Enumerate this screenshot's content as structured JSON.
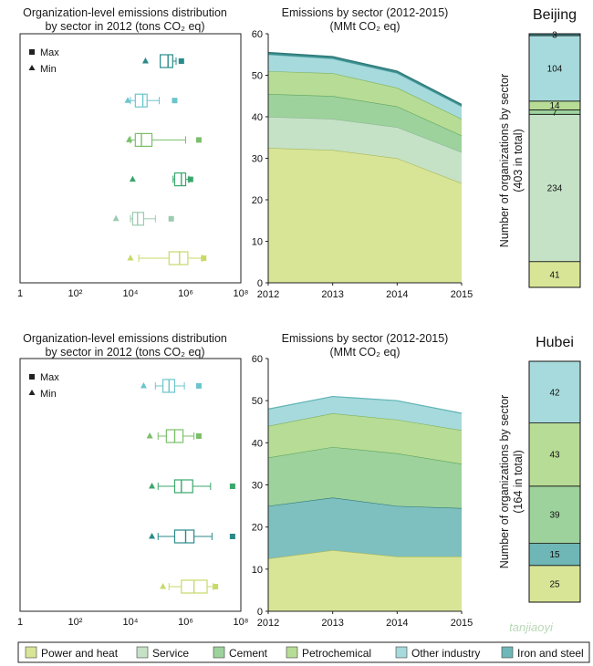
{
  "legend": [
    {
      "name": "Power and heat",
      "color": "#d8e597"
    },
    {
      "name": "Service",
      "color": "#c5e2c6"
    },
    {
      "name": "Cement",
      "color": "#9dd29c"
    },
    {
      "name": "Petrochemical",
      "color": "#b7dc95"
    },
    {
      "name": "Other industry",
      "color": "#a7dadc"
    },
    {
      "name": "Iron and steel",
      "color": "#6fb7b7"
    }
  ],
  "markers": {
    "max": "Max",
    "min": "Min"
  },
  "watermark": "tanjiaoyi",
  "chart_data": [
    {
      "type": "box",
      "title": [
        "Organization-level emissions distribution",
        "by sector in 2012 (tons CO₂ eq)"
      ],
      "xscale": "log",
      "xlim": [
        1,
        100000000
      ],
      "xticks": [
        "1",
        "10²",
        "10⁴",
        "10⁶",
        "10⁸"
      ],
      "boxes": [
        {
          "sector": "Iron and steel",
          "color": "#2a8a8a",
          "min": 35000,
          "q1": 120000,
          "median": 230000,
          "q3": 340000,
          "whisker_low": 120000,
          "whisker_high": 450000,
          "max": 700000
        },
        {
          "sector": "Other industry",
          "color": "#6cc5cc",
          "min": 8000,
          "q1": 15000,
          "median": 28000,
          "q3": 40000,
          "whisker_low": 10000,
          "whisker_high": 110000,
          "max": 400000
        },
        {
          "sector": "Petrochemical",
          "color": "#7bbf6a",
          "min": 9000,
          "q1": 15000,
          "median": 25000,
          "q3": 60000,
          "whisker_low": 10000,
          "whisker_high": 1000000,
          "max": 3000000
        },
        {
          "sector": "Cement",
          "color": "#3aa76d",
          "min": 12000,
          "q1": 400000,
          "median": 700000,
          "q3": 1000000,
          "whisker_low": 350000,
          "whisker_high": 1300000,
          "max": 1500000
        },
        {
          "sector": "Service",
          "color": "#9ccbb0",
          "min": 3000,
          "q1": 12000,
          "median": 18000,
          "q3": 30000,
          "whisker_low": 10000,
          "whisker_high": 80000,
          "max": 300000
        },
        {
          "sector": "Power and heat",
          "color": "#c9d96a",
          "min": 10000,
          "q1": 250000,
          "median": 600000,
          "q3": 1200000,
          "whisker_low": 20000,
          "whisker_high": 4000000,
          "max": 4500000
        }
      ]
    },
    {
      "type": "area",
      "title": [
        "Emissions by sector (2012-2015)",
        "(MMt CO₂ eq)"
      ],
      "x": [
        2012,
        2013,
        2014,
        2015
      ],
      "ylim": [
        0,
        60
      ],
      "yticks": [
        0,
        10,
        20,
        30,
        40,
        50,
        60
      ],
      "series": [
        {
          "name": "Power and heat",
          "color": "#d8e597",
          "line": "#aab85a",
          "values": [
            32.5,
            32.0,
            30.0,
            24.0
          ]
        },
        {
          "name": "Service",
          "color": "#c5e2c6",
          "line": "#8fb797",
          "values": [
            7.5,
            7.5,
            7.5,
            7.5
          ]
        },
        {
          "name": "Cement",
          "color": "#9dd29c",
          "line": "#5fa562",
          "values": [
            5.5,
            5.5,
            5.0,
            4.0
          ]
        },
        {
          "name": "Petrochemical",
          "color": "#b7dc95",
          "line": "#7eb15f",
          "values": [
            5.5,
            5.5,
            4.5,
            4.0
          ]
        },
        {
          "name": "Other industry",
          "color": "#a7dadc",
          "line": "#5fb3b5",
          "values": [
            4.0,
            3.5,
            3.5,
            3.0
          ]
        },
        {
          "name": "Iron and steel",
          "color": "#3e8e8e",
          "line": "#2c7777",
          "values": [
            0.5,
            0.5,
            0.5,
            0.5
          ]
        }
      ]
    },
    {
      "type": "stacked-bar",
      "title": "Beijing",
      "ylabel": [
        "Number of organizations by sector",
        "(403 in total)"
      ],
      "segments": [
        {
          "sector": "Power and heat",
          "color": "#d8e597",
          "value": 41
        },
        {
          "sector": "Service",
          "color": "#c5e2c6",
          "value": 234
        },
        {
          "sector": "Cement",
          "color": "#9dd29c",
          "value": 7
        },
        {
          "sector": "Petrochemical",
          "color": "#b7dc95",
          "value": 14
        },
        {
          "sector": "Other industry",
          "color": "#a7dadc",
          "value": 104
        },
        {
          "sector": "Iron and steel",
          "color": "#3e8e8e",
          "value": 3
        }
      ]
    },
    {
      "type": "box",
      "title": [
        "Organization-level emissions distribution",
        "by sector in 2012 (tons CO₂ eq)"
      ],
      "xscale": "log",
      "xlim": [
        1,
        100000000
      ],
      "xticks": [
        "1",
        "10²",
        "10⁴",
        "10⁶",
        "10⁸"
      ],
      "boxes": [
        {
          "sector": "Other industry",
          "color": "#6cc5cc",
          "min": 30000,
          "q1": 150000,
          "median": 250000,
          "q3": 400000,
          "whisker_low": 80000,
          "whisker_high": 900000,
          "max": 3000000
        },
        {
          "sector": "Petrochemical",
          "color": "#7bbf6a",
          "min": 50000,
          "q1": 200000,
          "median": 400000,
          "q3": 800000,
          "whisker_low": 100000,
          "whisker_high": 2000000,
          "max": 3000000
        },
        {
          "sector": "Cement",
          "color": "#3aa76d",
          "min": 60000,
          "q1": 400000,
          "median": 700000,
          "q3": 1800000,
          "whisker_low": 100000,
          "whisker_high": 8000000,
          "max": 50000000
        },
        {
          "sector": "Iron and steel",
          "color": "#2a8a8a",
          "min": 60000,
          "q1": 400000,
          "median": 1000000,
          "q3": 2000000,
          "whisker_low": 100000,
          "whisker_high": 9000000,
          "max": 50000000
        },
        {
          "sector": "Power and heat",
          "color": "#c9d96a",
          "min": 150000,
          "q1": 700000,
          "median": 2000000,
          "q3": 6000000,
          "whisker_low": 250000,
          "whisker_high": 10000000,
          "max": 12000000
        }
      ]
    },
    {
      "type": "area",
      "title": [
        "Emissions by sector (2012-2015)",
        "(MMt CO₂ eq)"
      ],
      "x": [
        2012,
        2013,
        2014,
        2015
      ],
      "ylim": [
        0,
        60
      ],
      "yticks": [
        0,
        10,
        20,
        30,
        40,
        50,
        60
      ],
      "series": [
        {
          "name": "Power and heat",
          "color": "#d8e597",
          "line": "#aab85a",
          "values": [
            12.5,
            14.5,
            13.0,
            13.0
          ]
        },
        {
          "name": "Iron and steel",
          "color": "#7ebfbf",
          "line": "#2c7777",
          "values": [
            12.5,
            12.5,
            12.0,
            11.5
          ]
        },
        {
          "name": "Cement",
          "color": "#9dd29c",
          "line": "#5fa562",
          "values": [
            11.5,
            12.0,
            12.5,
            10.5
          ]
        },
        {
          "name": "Petrochemical",
          "color": "#b7dc95",
          "line": "#7eb15f",
          "values": [
            7.5,
            8.0,
            8.0,
            8.0
          ]
        },
        {
          "name": "Other industry",
          "color": "#a7dadc",
          "line": "#5fb3b5",
          "values": [
            4.0,
            4.0,
            4.5,
            4.0
          ]
        }
      ]
    },
    {
      "type": "stacked-bar",
      "title": "Hubei",
      "ylabel": [
        "Number of organizations by sector",
        "(164 in total)"
      ],
      "segments": [
        {
          "sector": "Power and heat",
          "color": "#d8e597",
          "value": 25
        },
        {
          "sector": "Iron and steel",
          "color": "#6fb7b7",
          "value": 15
        },
        {
          "sector": "Cement",
          "color": "#9dd29c",
          "value": 39
        },
        {
          "sector": "Petrochemical",
          "color": "#b7dc95",
          "value": 43
        },
        {
          "sector": "Other industry",
          "color": "#a7dadc",
          "value": 42
        }
      ]
    }
  ]
}
